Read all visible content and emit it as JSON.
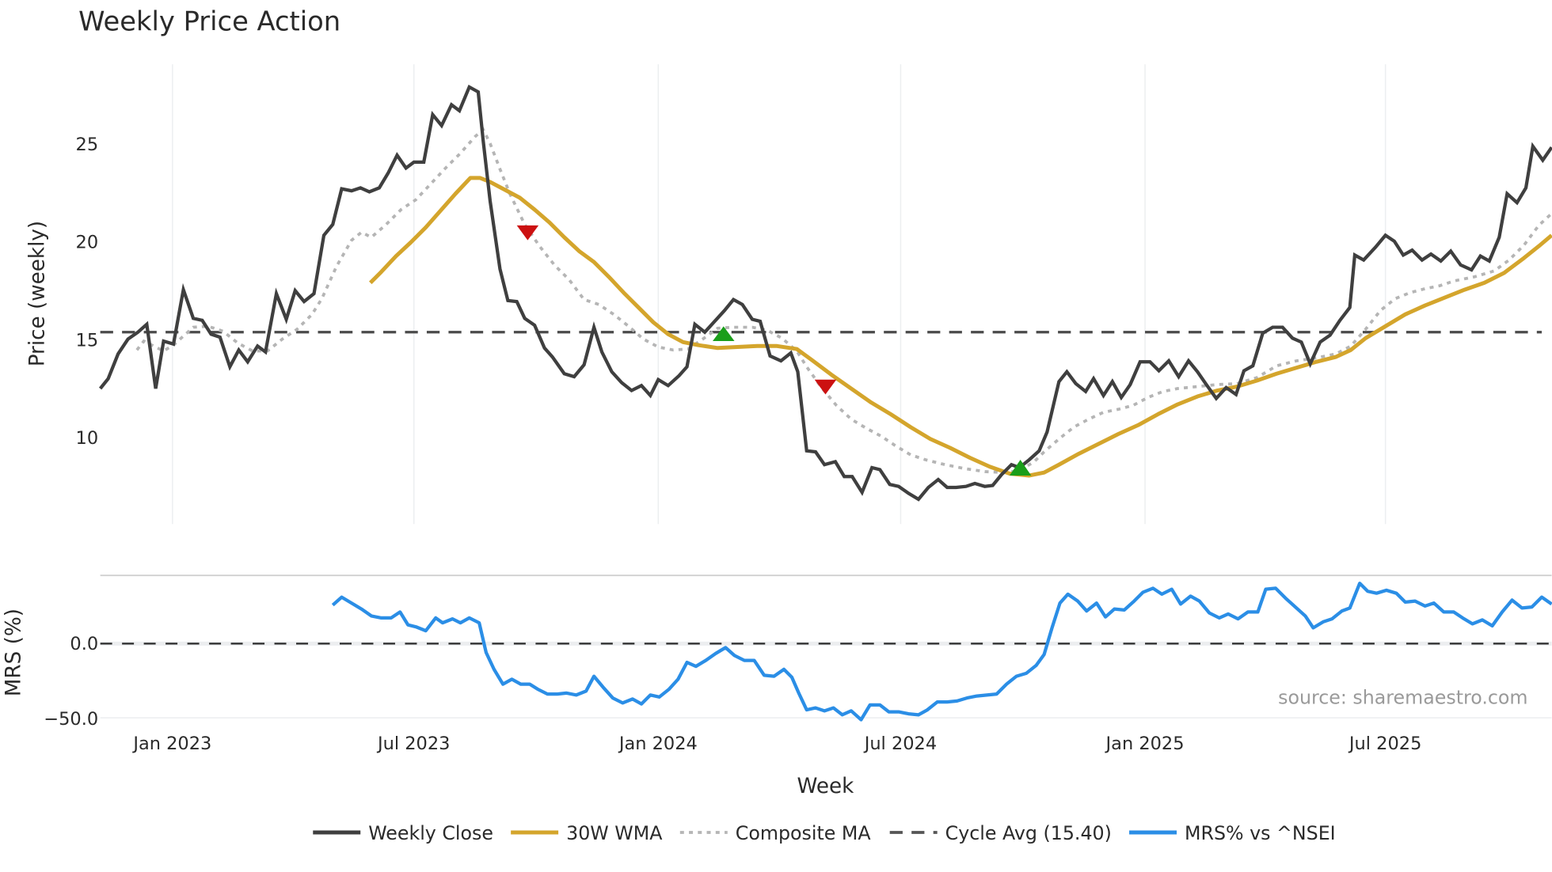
{
  "chart_data": [
    {
      "type": "line",
      "title": "Weekly Price Action",
      "xlabel": "Week",
      "ylabel": "Price (weekly)",
      "ylim": [
        5.5,
        28.5
      ],
      "yticks": [
        10,
        15,
        20,
        25
      ],
      "xticks": [
        "Jan 2023",
        "Jul 2023",
        "Jan 2024",
        "Jul 2024",
        "Jan 2025",
        "Jul 2025"
      ],
      "grid": "vertical gridlines at x ticks",
      "reference_line": {
        "name": "Cycle Avg",
        "value": 15.4,
        "style": "dashed"
      },
      "series": [
        {
          "name": "Weekly Close",
          "color": "#3f3f3f",
          "style": "solid",
          "approx_values_note": "weekly closes from ~Nov 2022 to ~Oct 2025",
          "key_points": [
            {
              "date": "Nov 2022",
              "value": 12.5
            },
            {
              "date": "Dec 2022",
              "value": 15.8
            },
            {
              "date": "Dec 2022",
              "value": 12.4
            },
            {
              "date": "Jan 2023",
              "value": 17.5
            },
            {
              "date": "Mar 2023",
              "value": 13.6
            },
            {
              "date": "Apr 2023",
              "value": 17.3
            },
            {
              "date": "May 2023",
              "value": 22.7
            },
            {
              "date": "Jun 2023",
              "value": 24.4
            },
            {
              "date": "Jul 2023",
              "value": 26.5
            },
            {
              "date": "Aug 2023",
              "value": 28.0
            },
            {
              "date": "Sep 2023",
              "value": 17.0
            },
            {
              "date": "Oct 2023",
              "value": 13.1
            },
            {
              "date": "Oct 2023",
              "value": 15.6
            },
            {
              "date": "Dec 2023",
              "value": 12.1
            },
            {
              "date": "Jan 2024",
              "value": 15.8
            },
            {
              "date": "Feb 2024",
              "value": 17.1
            },
            {
              "date": "Apr 2024",
              "value": 13.9
            },
            {
              "date": "Apr 2024",
              "value": 9.3
            },
            {
              "date": "Jun 2024",
              "value": 7.1
            },
            {
              "date": "Jul 2024",
              "value": 6.9
            },
            {
              "date": "Oct 2024",
              "value": 8.6
            },
            {
              "date": "Nov 2024",
              "value": 13.4
            },
            {
              "date": "Jan 2025",
              "value": 13.9
            },
            {
              "date": "Mar 2025",
              "value": 12.0
            },
            {
              "date": "Apr 2025",
              "value": 15.7
            },
            {
              "date": "May 2025",
              "value": 13.8
            },
            {
              "date": "Jun 2025",
              "value": 19.4
            },
            {
              "date": "Jul 2025",
              "value": 20.2
            },
            {
              "date": "Aug 2025",
              "value": 18.5
            },
            {
              "date": "Sep 2025",
              "value": 22.5
            },
            {
              "date": "Oct 2025",
              "value": 25.0
            },
            {
              "date": "Oct 2025",
              "value": 24.8
            }
          ]
        },
        {
          "name": "30W WMA",
          "color": "#d4a52c",
          "style": "solid",
          "key_points": [
            {
              "date": "Jun 2023",
              "value": 18.0
            },
            {
              "date": "Aug 2023",
              "value": 23.3
            },
            {
              "date": "Nov 2023",
              "value": 19.5
            },
            {
              "date": "Jan 2024",
              "value": 15.1
            },
            {
              "date": "Feb 2024",
              "value": 14.6
            },
            {
              "date": "Apr 2024",
              "value": 14.5
            },
            {
              "date": "Jul 2024",
              "value": 10.5
            },
            {
              "date": "Oct 2024",
              "value": 8.1
            },
            {
              "date": "Jan 2025",
              "value": 10.9
            },
            {
              "date": "Apr 2025",
              "value": 13.0
            },
            {
              "date": "Jul 2025",
              "value": 16.2
            },
            {
              "date": "Sep 2025",
              "value": 18.3
            },
            {
              "date": "Oct 2025",
              "value": 20.5
            }
          ]
        },
        {
          "name": "Composite MA",
          "color": "#b5b5b5",
          "style": "dotted",
          "key_points": [
            {
              "date": "Dec 2022",
              "value": 14.5
            },
            {
              "date": "Feb 2023",
              "value": 15.8
            },
            {
              "date": "Apr 2023",
              "value": 14.4
            },
            {
              "date": "Jun 2023",
              "value": 20.3
            },
            {
              "date": "Aug 2023",
              "value": 25.6
            },
            {
              "date": "Oct 2023",
              "value": 17.0
            },
            {
              "date": "Jan 2024",
              "value": 14.3
            },
            {
              "date": "Mar 2024",
              "value": 15.7
            },
            {
              "date": "Jun 2024",
              "value": 10.5
            },
            {
              "date": "Oct 2024",
              "value": 8.2
            },
            {
              "date": "Jan 2025",
              "value": 11.5
            },
            {
              "date": "Apr 2025",
              "value": 13.6
            },
            {
              "date": "Jul 2025",
              "value": 17.2
            },
            {
              "date": "Oct 2025",
              "value": 21.6
            }
          ]
        }
      ],
      "markers": [
        {
          "type": "sell",
          "shape": "down-triangle",
          "color": "#cc1111",
          "date": "Sep 2023",
          "value": 20.5
        },
        {
          "type": "buy",
          "shape": "up-triangle",
          "color": "#1a9e1a",
          "date": "Mar 2024",
          "value": 15.3
        },
        {
          "type": "sell",
          "shape": "down-triangle",
          "color": "#cc1111",
          "date": "May 2024",
          "value": 12.6
        },
        {
          "type": "buy",
          "shape": "up-triangle",
          "color": "#1a9e1a",
          "date": "Oct 2024",
          "value": 8.5
        }
      ]
    },
    {
      "type": "line",
      "title": "",
      "xlabel": "Week",
      "ylabel": "MRS (%)",
      "yticks": [
        0.0,
        -50.0
      ],
      "ylim": [
        -55,
        45
      ],
      "reference_line": {
        "value": 0.0,
        "style": "dashed"
      },
      "series": [
        {
          "name": "MRS% vs ^NSEI",
          "color": "#2b8ee6",
          "key_points": [
            {
              "date": "May 2023",
              "value": 26
            },
            {
              "date": "Jun 2023",
              "value": 18
            },
            {
              "date": "Aug 2023",
              "value": 14
            },
            {
              "date": "Sep 2023",
              "value": -30
            },
            {
              "date": "Nov 2023",
              "value": -32
            },
            {
              "date": "Dec 2023",
              "value": -40
            },
            {
              "date": "Feb 2024",
              "value": -10
            },
            {
              "date": "Apr 2024",
              "value": -22
            },
            {
              "date": "May 2024",
              "value": -45
            },
            {
              "date": "Jun 2024",
              "value": -53
            },
            {
              "date": "Aug 2024",
              "value": -47
            },
            {
              "date": "Oct 2024",
              "value": -23
            },
            {
              "date": "Nov 2024",
              "value": 32
            },
            {
              "date": "Jan 2025",
              "value": 35
            },
            {
              "date": "Mar 2025",
              "value": 17
            },
            {
              "date": "Apr 2025",
              "value": 37
            },
            {
              "date": "May 2025",
              "value": 10
            },
            {
              "date": "Jun 2025",
              "value": 40
            },
            {
              "date": "Aug 2025",
              "value": 20
            },
            {
              "date": "Sep 2025",
              "value": 10
            },
            {
              "date": "Oct 2025",
              "value": 27
            }
          ]
        }
      ]
    }
  ],
  "labels": {
    "title": "Weekly Price Action",
    "ylabel_price": "Price (weekly)",
    "ylabel_mrs": "MRS (%)",
    "xlabel": "Week",
    "source": "source: sharemaestro.com",
    "yticks_price": [
      "25",
      "20",
      "15",
      "10"
    ],
    "yticks_mrs": [
      "0.0",
      "−50.0"
    ],
    "xticks": [
      "Jan 2023",
      "Jul 2023",
      "Jan 2024",
      "Jul 2024",
      "Jan 2025",
      "Jul 2025"
    ]
  },
  "legend": [
    {
      "label": "Weekly Close",
      "color": "#3f3f3f",
      "style": "solid"
    },
    {
      "label": "30W WMA",
      "color": "#d4a52c",
      "style": "solid"
    },
    {
      "label": "Composite MA",
      "color": "#b5b5b5",
      "style": "dotted"
    },
    {
      "label": "Cycle Avg (15.40)",
      "color": "#555555",
      "style": "dashed"
    },
    {
      "label": "MRS% vs ^NSEI",
      "color": "#2b8ee6",
      "style": "solid"
    }
  ],
  "paths": {
    "close": "101,393 109,383 119,358 129,343 139,336 148,328 157,393 165,345 175,348 185,293 195,322 204,324 213,338 222,341 232,371 241,354 250,366 260,350 268,356 279,297 289,323 298,294 307,305 317,297 327,238 336,227 345,191 355,193 364,190 373,194 383,190 392,175 401,157 410,170 418,164 428,164 437,116 446,127 456,106 464,112 474,88 483,93 488,142 495,203 505,272 513,304 522,305 530,322 540,329 550,352 558,361 570,378 580,381 590,369 600,331 608,356 618,376 628,387 638,395 648,390 657,400 665,384 675,390 686,380 694,371 702,328 712,336 722,325 732,314 741,303 750,308 760,323 768,325 778,360 789,365 799,357 806,376 815,456 824,457 833,470 844,467 853,482 861,482 871,498 881,473 889,475 899,490 908,492 918,499 928,505 938,493 948,485 957,493 966,493 976,492 985,489 995,492 1003,491 1012,480 1022,470 1030,473 1040,465 1050,456 1058,437 1070,386 1078,376 1087,388 1097,396 1105,383 1115,400 1124,386 1133,402 1142,389 1152,366 1162,366 1171,375 1181,365 1191,381 1201,365 1210,376 1219,389 1229,403 1239,392 1249,399 1257,375 1266,370 1276,337 1286,331 1296,331 1306,342 1315,346 1324,368 1334,346 1344,339 1354,324 1364,311 1369,258 1378,263 1390,250 1400,238 1409,244 1418,258 1427,253 1437,263 1446,257 1456,264 1466,254 1476,268 1487,273 1496,259 1505,264 1515,240 1523,196 1533,205 1542,190 1549,148 1559,162 1568,149",
    "wma": "374,286 385,275 400,259 415,245 430,230 445,213 460,196 475,180 485,180 495,184 510,192 525,200 540,212 555,225 570,240 585,254 600,265 615,280 630,296 645,311 660,326 675,338 690,346 705,349 725,352 745,351 765,350 785,350 805,353 820,364 840,379 860,393 880,407 900,419 920,432 940,444 960,453 980,463 1000,472 1020,479 1040,481 1055,478 1070,470 1090,459 1110,449 1130,439 1150,430 1170,419 1190,409 1210,401 1230,395 1250,391 1270,385 1290,378 1310,372 1330,366 1350,361 1365,354 1380,342 1400,330 1420,318 1440,309 1460,301 1480,293 1500,286 1520,276 1540,261 1555,249 1568,238",
    "comp": "138,354 145,345 155,350 165,355 175,349 185,340 195,331 210,330 225,335 240,347 255,355 270,355 285,343 300,333 315,318 325,302 340,269 355,243 365,235 375,240 390,227 405,212 420,202 435,186 450,170 465,155 480,138 488,131 495,145 505,171 515,196 530,227 545,249 560,268 575,283 590,303 605,308 620,318 635,330 650,343 665,351 680,354 695,353 710,343 725,332 740,331 760,331 775,334 790,342 805,355 815,371 830,392 845,410 860,424 875,433 890,441 905,451 920,460 935,465 955,470 975,474 995,477 1015,478 1030,476 1045,467 1055,457 1070,444 1085,432 1100,424 1115,417 1130,414 1145,410 1160,402 1175,396 1190,393 1210,391 1230,389 1250,388 1270,382 1290,370 1310,365 1330,362 1350,358 1365,350 1380,333 1395,314 1410,302 1425,296 1440,292 1455,289 1470,284 1490,280 1510,274 1525,263 1540,248 1555,228 1568,216",
    "mrs": "336,612 345,604 355,610 365,616 375,623 385,625 395,625 404,619 412,632 420,634 430,638 440,625 447,630 457,626 465,630 474,625 484,630 491,660 499,677 508,692 517,687 526,692 535,692 543,697 553,702 563,702 572,701 582,703 592,699 600,684 610,696 619,706 629,711 639,707 648,712 657,703 666,705 676,697 685,687 694,670 703,674 713,668 723,661 733,655 742,663 752,668 762,668 772,683 782,684 792,677 800,685 807,701 815,718 824,716 833,719 842,716 851,723 860,719 870,728 879,713 889,713 898,720 908,720 918,722 928,723 937,718 947,710 957,710 967,709 977,706 987,704 997,703 1007,702 1017,692 1027,684 1037,681 1047,673 1055,662 1063,635 1071,610 1079,601 1089,608 1098,618 1108,610 1117,624 1126,616 1136,617 1146,608 1155,599 1165,595 1174,601 1184,596 1193,611 1203,603 1212,608 1222,620 1232,625 1241,621 1251,626 1261,619 1271,619 1279,596 1289,595 1299,605 1309,614 1319,623 1327,635 1337,629 1346,626 1356,618 1364,615 1374,590 1382,598 1391,600 1401,597 1411,600 1420,609 1430,608 1440,613 1449,610 1459,619 1469,619 1478,625 1488,631 1498,627 1508,633 1518,619 1528,607 1538,615 1548,614 1558,604 1568,611"
  }
}
